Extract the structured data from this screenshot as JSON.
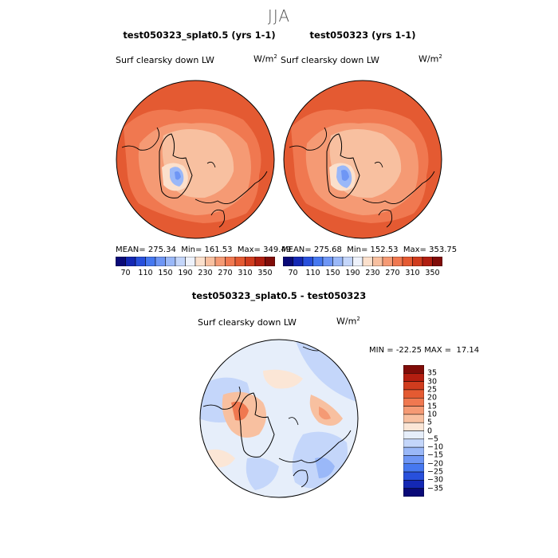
{
  "figure": {
    "season": "JJA"
  },
  "panels": [
    {
      "title": "test050323_splat0.5 (yrs 1-1)",
      "variable": "Surf clearsky down LW",
      "units_base": "W/m",
      "units_exp": "2",
      "stats": {
        "mean_label": "MEAN=",
        "mean": "275.34",
        "min_label": "Min=",
        "min": "161.53",
        "max_label": "Max=",
        "max": "349.49"
      }
    },
    {
      "title": "test050323 (yrs 1-1)",
      "variable": "Surf clearsky down LW",
      "units_base": "W/m",
      "units_exp": "2",
      "stats": {
        "mean_label": "MEAN=",
        "mean": "275.68",
        "min_label": "Min=",
        "min": "152.53",
        "max_label": "Max=",
        "max": "353.75"
      }
    }
  ],
  "diff_panel": {
    "title": "test050323_splat0.5 - test050323",
    "variable": "Surf clearsky down LW",
    "units_base": "W/m",
    "units_exp": "2",
    "stats": {
      "min_label": "MIN =",
      "min": "-22.25",
      "max_label": "MAX =",
      "max": "17.14"
    }
  },
  "chart_data": [
    {
      "type": "heatmap",
      "title": "test050323_splat0.5 (yrs 1-1)",
      "projection": "north polar stereographic",
      "colorbar": {
        "orientation": "horizontal",
        "tick_labels": [
          "70",
          "110",
          "150",
          "190",
          "230",
          "270",
          "310",
          "350"
        ],
        "levels": [
          70,
          90,
          110,
          130,
          150,
          170,
          190,
          210,
          230,
          250,
          270,
          290,
          310,
          330,
          350
        ],
        "colors": [
          "#0a0a78",
          "#1428b4",
          "#2850dc",
          "#4678f0",
          "#6e96f5",
          "#9ab8f8",
          "#c4d6fa",
          "#eef2fb",
          "#fbe0cc",
          "#f8c0a0",
          "#f59a74",
          "#f07850",
          "#e45a32",
          "#d03c1e",
          "#b01e10",
          "#800c08"
        ]
      },
      "stats": {
        "mean": 275.34,
        "min": 161.53,
        "max": 349.49
      }
    },
    {
      "type": "heatmap",
      "title": "test050323 (yrs 1-1)",
      "projection": "north polar stereographic",
      "colorbar": {
        "orientation": "horizontal",
        "tick_labels": [
          "70",
          "110",
          "150",
          "190",
          "230",
          "270",
          "310",
          "350"
        ],
        "levels": [
          70,
          90,
          110,
          130,
          150,
          170,
          190,
          210,
          230,
          250,
          270,
          290,
          310,
          330,
          350
        ],
        "colors": [
          "#0a0a78",
          "#1428b4",
          "#2850dc",
          "#4678f0",
          "#6e96f5",
          "#9ab8f8",
          "#c4d6fa",
          "#eef2fb",
          "#fbe0cc",
          "#f8c0a0",
          "#f59a74",
          "#f07850",
          "#e45a32",
          "#d03c1e",
          "#b01e10",
          "#800c08"
        ]
      },
      "stats": {
        "mean": 275.68,
        "min": 152.53,
        "max": 353.75
      }
    },
    {
      "type": "heatmap",
      "title": "test050323_splat0.5 - test050323",
      "projection": "north polar stereographic",
      "colorbar": {
        "orientation": "vertical",
        "tick_labels": [
          "35",
          "30",
          "25",
          "20",
          "15",
          "10",
          "5",
          "0",
          "−5",
          "−10",
          "−15",
          "−20",
          "−25",
          "−30",
          "−35"
        ],
        "levels": [
          35,
          30,
          25,
          20,
          15,
          10,
          5,
          0,
          -5,
          -10,
          -15,
          -20,
          -25,
          -30,
          -35
        ],
        "colors": [
          "#800c08",
          "#b41e10",
          "#d03c1e",
          "#e45a32",
          "#f07850",
          "#f59a74",
          "#f8c0a0",
          "#fbe6d6",
          "#e6eefa",
          "#c4d6fa",
          "#9ab8f8",
          "#6e96f5",
          "#4678f0",
          "#2850dc",
          "#1428b4",
          "#0a0a78"
        ]
      },
      "stats": {
        "min": -22.25,
        "max": 17.14
      }
    }
  ]
}
